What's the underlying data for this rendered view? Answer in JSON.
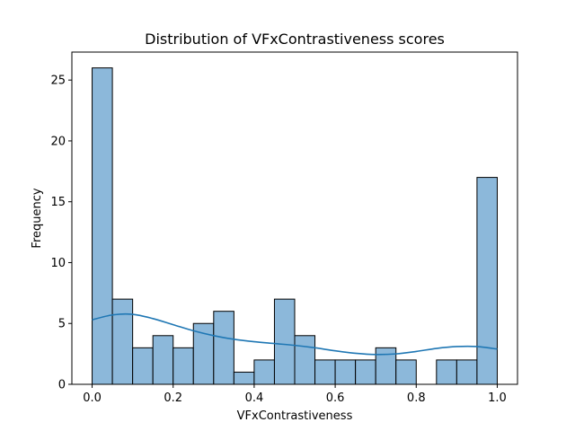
{
  "chart_data": {
    "type": "bar",
    "title": "Distribution of VFxContrastiveness scores",
    "xlabel": "VFxContrastiveness",
    "ylabel": "Frequency",
    "xlim": [
      -0.05,
      1.05
    ],
    "ylim": [
      0,
      27.3
    ],
    "bin_edges": [
      0.0,
      0.05,
      0.1,
      0.15,
      0.2,
      0.25,
      0.3,
      0.35,
      0.4,
      0.45,
      0.5,
      0.55,
      0.6,
      0.65,
      0.7,
      0.75,
      0.8,
      0.85,
      0.9,
      0.95,
      1.0
    ],
    "values": [
      26,
      7,
      3,
      4,
      3,
      5,
      6,
      1,
      2,
      7,
      4,
      2,
      2,
      2,
      3,
      2,
      0,
      2,
      2,
      17
    ],
    "xticks": [
      {
        "value": 0.0,
        "label": "0.0"
      },
      {
        "value": 0.2,
        "label": "0.2"
      },
      {
        "value": 0.4,
        "label": "0.4"
      },
      {
        "value": 0.6,
        "label": "0.6"
      },
      {
        "value": 0.8,
        "label": "0.8"
      },
      {
        "value": 1.0,
        "label": "1.0"
      }
    ],
    "yticks": [
      {
        "value": 0,
        "label": "0"
      },
      {
        "value": 5,
        "label": "5"
      },
      {
        "value": 10,
        "label": "10"
      },
      {
        "value": 15,
        "label": "15"
      },
      {
        "value": 20,
        "label": "20"
      },
      {
        "value": 25,
        "label": "25"
      }
    ],
    "kde": {
      "x": [
        0.0,
        0.05,
        0.1,
        0.15,
        0.2,
        0.25,
        0.3,
        0.35,
        0.4,
        0.45,
        0.5,
        0.55,
        0.6,
        0.65,
        0.7,
        0.75,
        0.8,
        0.85,
        0.9,
        0.95,
        1.0
      ],
      "y": [
        5.3,
        5.7,
        5.75,
        5.4,
        4.9,
        4.4,
        4.0,
        3.7,
        3.5,
        3.35,
        3.2,
        3.0,
        2.75,
        2.55,
        2.45,
        2.5,
        2.7,
        2.95,
        3.1,
        3.1,
        2.9
      ]
    },
    "colors": {
      "bar_fill": "#8cb8da",
      "bar_edge": "#000000",
      "kde_line": "#1f77b4"
    },
    "grid": false,
    "legend": "none"
  }
}
